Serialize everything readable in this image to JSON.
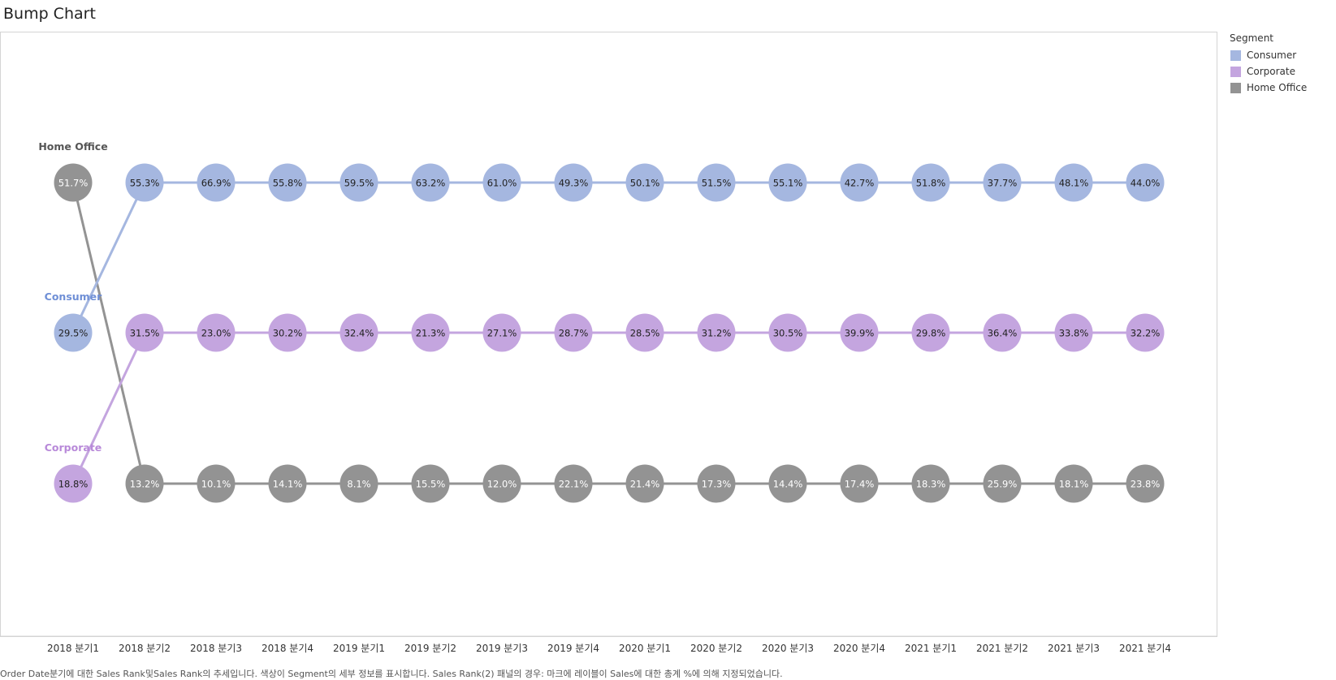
{
  "title": "Bump Chart",
  "footer": "Order Date분기에 대한 Sales Rank및Sales Rank의 추세입니다. 색상이 Segment의 세부 정보를 표시합니다. Sales Rank(2) 패널의 경우: 마크에 레이블이 Sales에 대한 총계 %에 의해 지정되었습니다.",
  "legend": {
    "title": "Segment",
    "items": [
      {
        "label": "Consumer",
        "color": "#a5b7e0"
      },
      {
        "label": "Corporate",
        "color": "#c4a5df"
      },
      {
        "label": "Home Office",
        "color": "#939393"
      }
    ]
  },
  "chart_data": {
    "type": "line",
    "subtype": "bump",
    "x": [
      "2018 분기1",
      "2018 분기2",
      "2018 분기3",
      "2018 분기4",
      "2019 분기1",
      "2019 분기2",
      "2019 분기3",
      "2019 분기4",
      "2020 분기1",
      "2020 분기2",
      "2020 분기3",
      "2020 분기4",
      "2021 분기1",
      "2021 분기2",
      "2021 분기3",
      "2021 분기4"
    ],
    "ranks": [
      1,
      2,
      3
    ],
    "series": [
      {
        "name": "Home Office",
        "color": "#939393",
        "label_color": "#555555",
        "text_color": "#ffffff",
        "rank": [
          1,
          3,
          3,
          3,
          3,
          3,
          3,
          3,
          3,
          3,
          3,
          3,
          3,
          3,
          3,
          3
        ],
        "labels": [
          "51.7%",
          "13.2%",
          "10.1%",
          "14.1%",
          "8.1%",
          "15.5%",
          "12.0%",
          "22.1%",
          "21.4%",
          "17.3%",
          "14.4%",
          "17.4%",
          "18.3%",
          "25.9%",
          "18.1%",
          "23.8%"
        ]
      },
      {
        "name": "Consumer",
        "color": "#a5b7e0",
        "label_color": "#6f8fd6",
        "text_color": "#222222",
        "rank": [
          2,
          1,
          1,
          1,
          1,
          1,
          1,
          1,
          1,
          1,
          1,
          1,
          1,
          1,
          1,
          1
        ],
        "labels": [
          "29.5%",
          "55.3%",
          "66.9%",
          "55.8%",
          "59.5%",
          "63.2%",
          "61.0%",
          "49.3%",
          "50.1%",
          "51.5%",
          "55.1%",
          "42.7%",
          "51.8%",
          "37.7%",
          "48.1%",
          "44.0%"
        ]
      },
      {
        "name": "Corporate",
        "color": "#c4a5df",
        "label_color": "#b889d9",
        "text_color": "#222222",
        "rank": [
          3,
          2,
          2,
          2,
          2,
          2,
          2,
          2,
          2,
          2,
          2,
          2,
          2,
          2,
          2,
          2
        ],
        "labels": [
          "18.8%",
          "31.5%",
          "23.0%",
          "30.2%",
          "32.4%",
          "21.3%",
          "27.1%",
          "28.7%",
          "28.5%",
          "31.2%",
          "30.5%",
          "39.9%",
          "29.8%",
          "36.4%",
          "33.8%",
          "32.2%"
        ]
      }
    ],
    "legend_position": "right",
    "grid": false
  }
}
